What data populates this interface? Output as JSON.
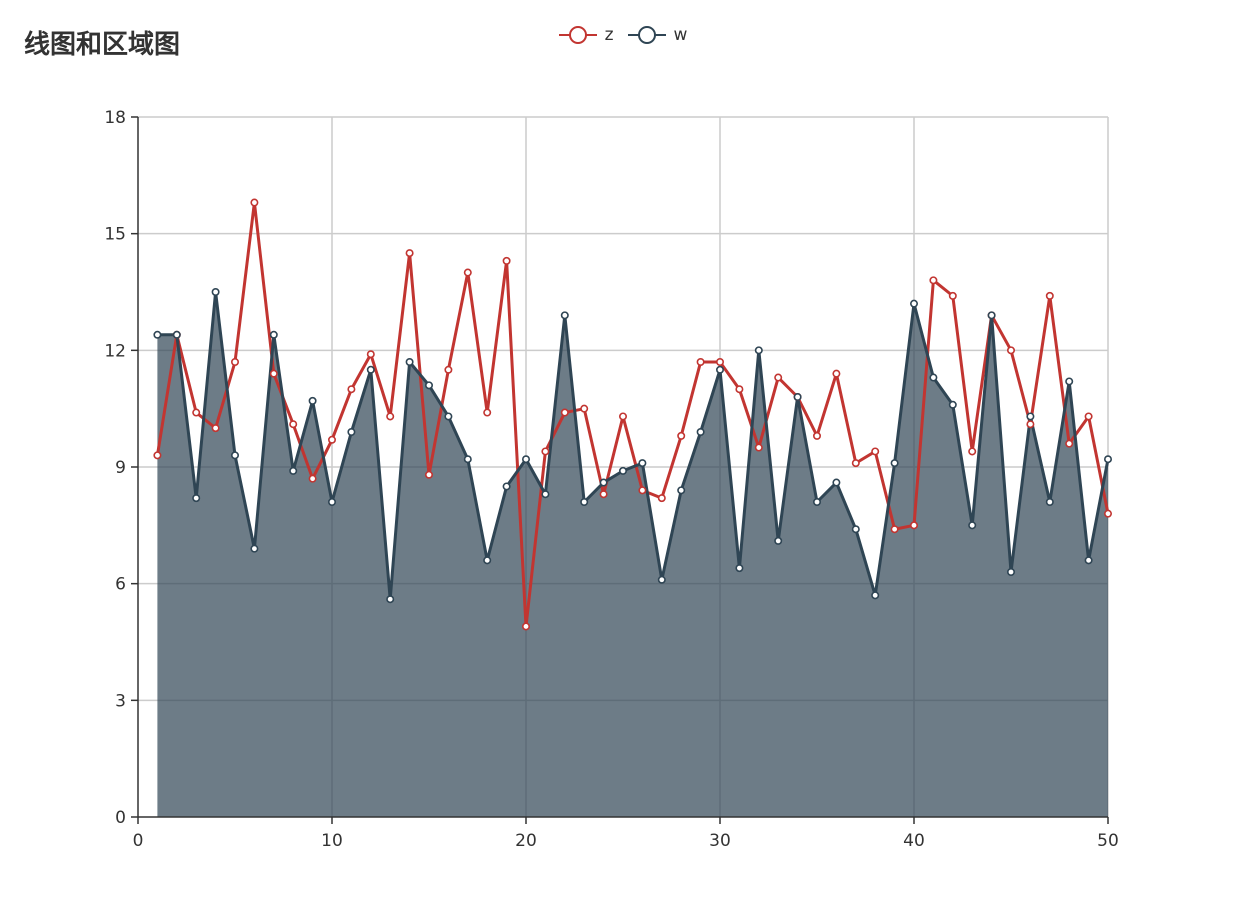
{
  "chart_data": {
    "type": "line",
    "title": "线图和区域图",
    "xlabel": "",
    "ylabel": "",
    "xlim": [
      0,
      50
    ],
    "ylim": [
      0,
      18
    ],
    "xticks": [
      0,
      10,
      20,
      30,
      40,
      50
    ],
    "yticks": [
      0,
      3,
      6,
      9,
      12,
      15,
      18
    ],
    "grid": true,
    "legend_position": "top-center",
    "x": [
      1,
      2,
      3,
      4,
      5,
      6,
      7,
      8,
      9,
      10,
      11,
      12,
      13,
      14,
      15,
      16,
      17,
      18,
      19,
      20,
      21,
      22,
      23,
      24,
      25,
      26,
      27,
      28,
      29,
      30,
      31,
      32,
      33,
      34,
      35,
      36,
      37,
      38,
      39,
      40,
      41,
      42,
      43,
      44,
      45,
      46,
      47,
      48,
      49,
      50
    ],
    "series": [
      {
        "name": "z",
        "color": "#c23531",
        "area": false,
        "values": [
          9.3,
          12.4,
          10.4,
          10.0,
          11.7,
          15.8,
          11.4,
          10.1,
          8.7,
          9.7,
          11.0,
          11.9,
          10.3,
          14.5,
          8.8,
          11.5,
          14.0,
          10.4,
          14.3,
          4.9,
          9.4,
          10.4,
          10.5,
          8.3,
          10.3,
          8.4,
          8.2,
          9.8,
          11.7,
          11.7,
          11.0,
          9.5,
          11.3,
          10.8,
          9.8,
          11.4,
          9.1,
          9.4,
          7.4,
          7.5,
          13.8,
          13.4,
          9.4,
          12.9,
          12.0,
          10.1,
          13.4,
          9.6,
          10.3,
          7.8
        ]
      },
      {
        "name": "w",
        "color": "#2f4554",
        "area": true,
        "values": [
          12.4,
          12.4,
          8.2,
          13.5,
          9.3,
          6.9,
          12.4,
          8.9,
          10.7,
          8.1,
          9.9,
          11.5,
          5.6,
          11.7,
          11.1,
          10.3,
          9.2,
          6.6,
          8.5,
          9.2,
          8.3,
          12.9,
          8.1,
          8.6,
          8.9,
          9.1,
          6.1,
          8.4,
          9.9,
          11.5,
          6.4,
          12.0,
          7.1,
          10.8,
          8.1,
          8.6,
          7.4,
          5.7,
          9.1,
          13.2,
          11.3,
          10.6,
          7.5,
          12.9,
          6.3,
          10.3,
          8.1,
          11.2,
          6.6,
          9.2
        ]
      }
    ]
  },
  "legend": {
    "items": [
      {
        "label": "z",
        "color": "#c23531"
      },
      {
        "label": "w",
        "color": "#2f4554"
      }
    ]
  }
}
